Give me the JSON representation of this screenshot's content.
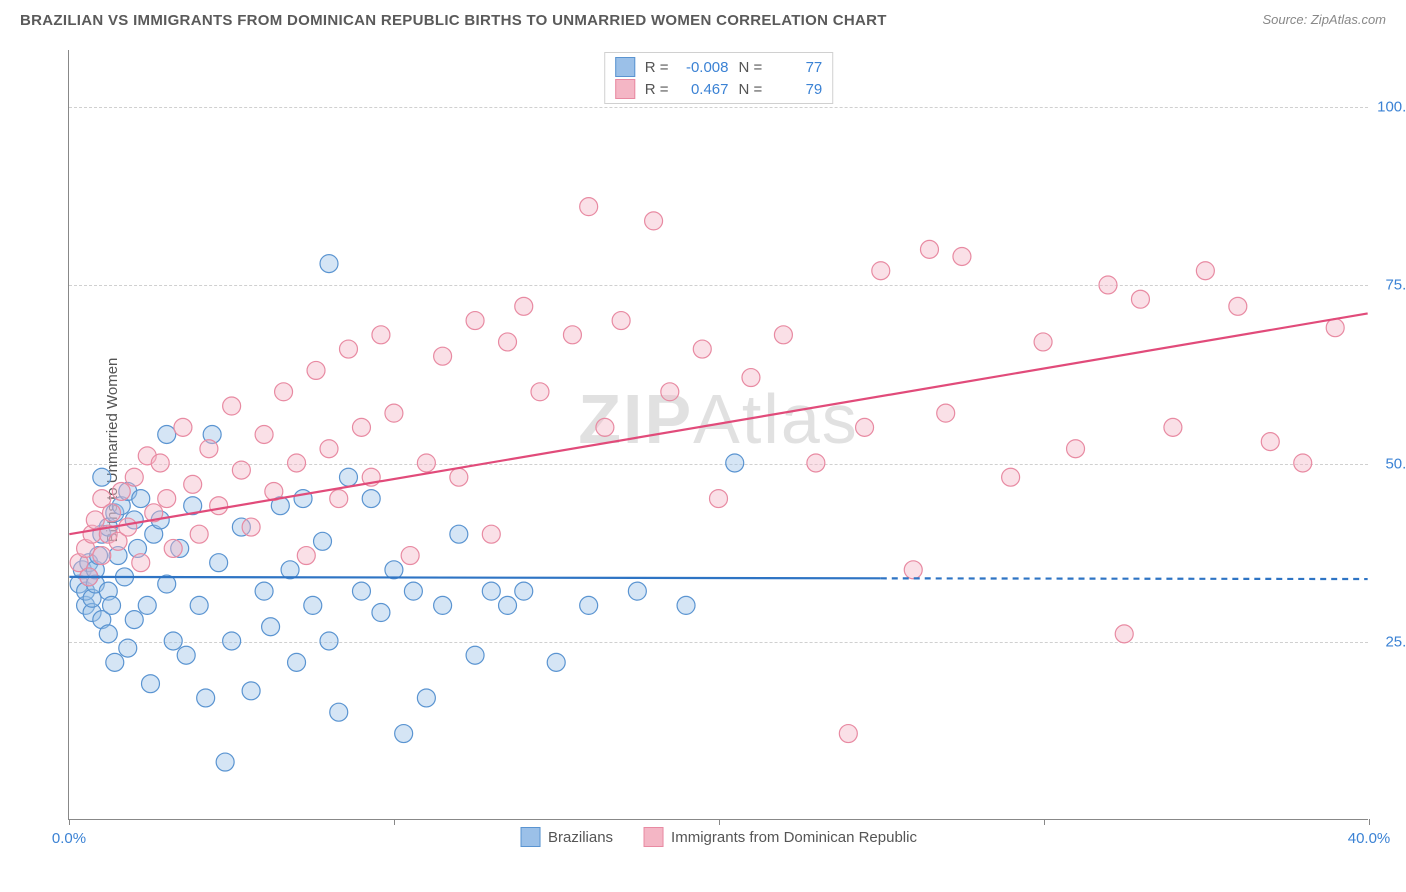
{
  "title": "BRAZILIAN VS IMMIGRANTS FROM DOMINICAN REPUBLIC BIRTHS TO UNMARRIED WOMEN CORRELATION CHART",
  "source": "Source: ZipAtlas.com",
  "ylabel": "Births to Unmarried Women",
  "watermark_bold": "ZIP",
  "watermark_rest": "Atlas",
  "chart": {
    "type": "scatter",
    "xlim": [
      0,
      40
    ],
    "ylim": [
      0,
      108
    ],
    "xtick_positions": [
      0,
      10,
      20,
      30,
      40
    ],
    "xtick_labels": [
      "0.0%",
      "",
      "",
      "",
      "40.0%"
    ],
    "ytick_positions": [
      25,
      50,
      75,
      100
    ],
    "ytick_labels": [
      "25.0%",
      "50.0%",
      "75.0%",
      "100.0%"
    ],
    "grid_color": "#d0d0d0",
    "background": "#ffffff",
    "marker_radius": 9,
    "marker_opacity": 0.42,
    "line_width": 2.2,
    "series": [
      {
        "name": "Brazilians",
        "color_fill": "#9bc0e8",
        "color_stroke": "#5a94d1",
        "line_color": "#2e74c4",
        "R": "-0.008",
        "N": "77",
        "trend": {
          "x0": 0,
          "y0": 34.0,
          "x1": 25,
          "y1": 33.8,
          "x_extent": 40,
          "y_extent": 33.7
        },
        "points": [
          [
            0.3,
            33
          ],
          [
            0.4,
            35
          ],
          [
            0.5,
            30
          ],
          [
            0.5,
            32
          ],
          [
            0.6,
            34
          ],
          [
            0.6,
            36
          ],
          [
            0.7,
            29
          ],
          [
            0.7,
            31
          ],
          [
            0.8,
            33
          ],
          [
            0.8,
            35
          ],
          [
            0.9,
            37
          ],
          [
            1.0,
            28
          ],
          [
            1.0,
            40
          ],
          [
            1.0,
            48
          ],
          [
            1.2,
            32
          ],
          [
            1.2,
            26
          ],
          [
            1.2,
            41
          ],
          [
            1.3,
            30
          ],
          [
            1.4,
            43
          ],
          [
            1.4,
            22
          ],
          [
            1.5,
            37
          ],
          [
            1.6,
            44
          ],
          [
            1.7,
            34
          ],
          [
            1.8,
            24
          ],
          [
            1.8,
            46
          ],
          [
            2.0,
            42
          ],
          [
            2.0,
            28
          ],
          [
            2.1,
            38
          ],
          [
            2.2,
            45
          ],
          [
            2.4,
            30
          ],
          [
            2.5,
            19
          ],
          [
            2.6,
            40
          ],
          [
            2.8,
            42
          ],
          [
            3.0,
            54
          ],
          [
            3.0,
            33
          ],
          [
            3.2,
            25
          ],
          [
            3.4,
            38
          ],
          [
            3.6,
            23
          ],
          [
            3.8,
            44
          ],
          [
            4.0,
            30
          ],
          [
            4.2,
            17
          ],
          [
            4.4,
            54
          ],
          [
            4.6,
            36
          ],
          [
            4.8,
            8
          ],
          [
            5.0,
            25
          ],
          [
            5.3,
            41
          ],
          [
            5.6,
            18
          ],
          [
            6.0,
            32
          ],
          [
            6.2,
            27
          ],
          [
            6.5,
            44
          ],
          [
            6.8,
            35
          ],
          [
            7.0,
            22
          ],
          [
            7.2,
            45
          ],
          [
            7.5,
            30
          ],
          [
            7.8,
            39
          ],
          [
            8.0,
            25
          ],
          [
            8.0,
            78
          ],
          [
            8.3,
            15
          ],
          [
            8.6,
            48
          ],
          [
            9.0,
            32
          ],
          [
            9.3,
            45
          ],
          [
            9.6,
            29
          ],
          [
            10.0,
            35
          ],
          [
            10.3,
            12
          ],
          [
            10.6,
            32
          ],
          [
            11.0,
            17
          ],
          [
            11.5,
            30
          ],
          [
            12.0,
            40
          ],
          [
            12.5,
            23
          ],
          [
            13.0,
            32
          ],
          [
            13.5,
            30
          ],
          [
            14.0,
            32
          ],
          [
            15.0,
            22
          ],
          [
            16.0,
            30
          ],
          [
            17.5,
            32
          ],
          [
            19.0,
            30
          ],
          [
            20.5,
            50
          ]
        ]
      },
      {
        "name": "Immigrants from Dominican Republic",
        "color_fill": "#f4b6c5",
        "color_stroke": "#e88aa2",
        "line_color": "#e14b7a",
        "R": "0.467",
        "N": "79",
        "trend": {
          "x0": 0,
          "y0": 40.0,
          "x1": 40,
          "y1": 71.0,
          "x_extent": 40,
          "y_extent": 71.0
        },
        "points": [
          [
            0.3,
            36
          ],
          [
            0.5,
            38
          ],
          [
            0.6,
            34
          ],
          [
            0.7,
            40
          ],
          [
            0.8,
            42
          ],
          [
            1.0,
            37
          ],
          [
            1.0,
            45
          ],
          [
            1.2,
            40
          ],
          [
            1.3,
            43
          ],
          [
            1.5,
            39
          ],
          [
            1.6,
            46
          ],
          [
            1.8,
            41
          ],
          [
            2.0,
            48
          ],
          [
            2.2,
            36
          ],
          [
            2.4,
            51
          ],
          [
            2.6,
            43
          ],
          [
            2.8,
            50
          ],
          [
            3.0,
            45
          ],
          [
            3.2,
            38
          ],
          [
            3.5,
            55
          ],
          [
            3.8,
            47
          ],
          [
            4.0,
            40
          ],
          [
            4.3,
            52
          ],
          [
            4.6,
            44
          ],
          [
            5.0,
            58
          ],
          [
            5.3,
            49
          ],
          [
            5.6,
            41
          ],
          [
            6.0,
            54
          ],
          [
            6.3,
            46
          ],
          [
            6.6,
            60
          ],
          [
            7.0,
            50
          ],
          [
            7.3,
            37
          ],
          [
            7.6,
            63
          ],
          [
            8.0,
            52
          ],
          [
            8.3,
            45
          ],
          [
            8.6,
            66
          ],
          [
            9.0,
            55
          ],
          [
            9.3,
            48
          ],
          [
            9.6,
            68
          ],
          [
            10.0,
            57
          ],
          [
            10.5,
            37
          ],
          [
            11.0,
            50
          ],
          [
            11.5,
            65
          ],
          [
            12.0,
            48
          ],
          [
            12.5,
            70
          ],
          [
            13.0,
            40
          ],
          [
            13.5,
            67
          ],
          [
            14.0,
            72
          ],
          [
            14.5,
            60
          ],
          [
            15.5,
            68
          ],
          [
            16.0,
            86
          ],
          [
            16.5,
            55
          ],
          [
            17.0,
            70
          ],
          [
            18.0,
            84
          ],
          [
            18.5,
            60
          ],
          [
            19.5,
            66
          ],
          [
            20.0,
            45
          ],
          [
            21.0,
            62
          ],
          [
            22.0,
            68
          ],
          [
            23.0,
            50
          ],
          [
            24.0,
            12
          ],
          [
            24.5,
            55
          ],
          [
            25.0,
            77
          ],
          [
            26.0,
            35
          ],
          [
            26.5,
            80
          ],
          [
            27.0,
            57
          ],
          [
            27.5,
            79
          ],
          [
            29.0,
            48
          ],
          [
            30.0,
            67
          ],
          [
            31.0,
            52
          ],
          [
            32.0,
            75
          ],
          [
            32.5,
            26
          ],
          [
            33.0,
            73
          ],
          [
            34.0,
            55
          ],
          [
            35.0,
            77
          ],
          [
            36.0,
            72
          ],
          [
            37.0,
            53
          ],
          [
            38.0,
            50
          ],
          [
            39.0,
            69
          ]
        ]
      }
    ]
  },
  "legend_bottom": [
    {
      "label": "Brazilians",
      "fill": "#9bc0e8",
      "stroke": "#5a94d1"
    },
    {
      "label": "Immigrants from Dominican Republic",
      "fill": "#f4b6c5",
      "stroke": "#e88aa2"
    }
  ]
}
